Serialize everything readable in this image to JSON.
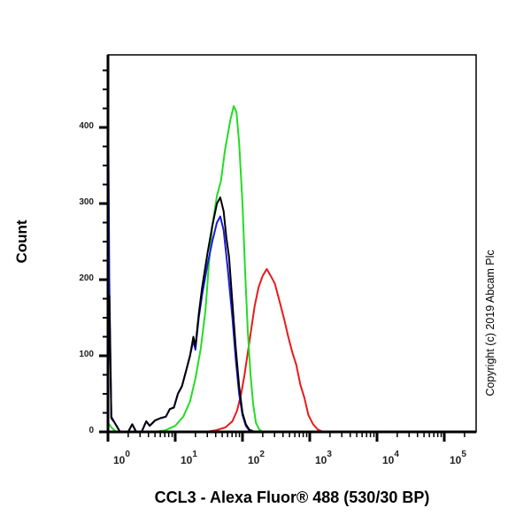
{
  "chart_data": {
    "type": "line",
    "title": "",
    "xlabel": "CCL3 - Alexa Fluor® 488 (530/30 BP)",
    "ylabel": "Count",
    "xscale": "log",
    "xlim_log10": [
      0,
      5.4
    ],
    "ylim": [
      0,
      500
    ],
    "yticks": [
      0,
      100,
      200,
      300,
      400
    ],
    "ytick_labels": [
      "0",
      "100",
      "200",
      "300",
      "400"
    ],
    "xticks_log10": [
      0,
      1,
      2,
      3,
      4,
      5
    ],
    "xtick_labels": [
      {
        "base": "10",
        "exp": "0"
      },
      {
        "base": "10",
        "exp": "1"
      },
      {
        "base": "10",
        "exp": "2"
      },
      {
        "base": "10",
        "exp": "3"
      },
      {
        "base": "10",
        "exp": "4"
      },
      {
        "base": "10",
        "exp": "5"
      }
    ],
    "grid": false,
    "legend": null,
    "annotation": "Copyright (c) 2019 Abcam Plc",
    "series": [
      {
        "name": "Red",
        "color": "#e8191a",
        "points_log10x_count": [
          [
            1.45,
            0
          ],
          [
            1.6,
            2
          ],
          [
            1.75,
            6
          ],
          [
            1.85,
            14
          ],
          [
            1.92,
            28
          ],
          [
            1.98,
            50
          ],
          [
            2.03,
            75
          ],
          [
            2.08,
            105
          ],
          [
            2.13,
            135
          ],
          [
            2.18,
            165
          ],
          [
            2.24,
            190
          ],
          [
            2.3,
            205
          ],
          [
            2.36,
            214
          ],
          [
            2.42,
            205
          ],
          [
            2.48,
            195
          ],
          [
            2.55,
            172
          ],
          [
            2.62,
            148
          ],
          [
            2.68,
            125
          ],
          [
            2.74,
            105
          ],
          [
            2.8,
            88
          ],
          [
            2.86,
            62
          ],
          [
            2.92,
            45
          ],
          [
            2.98,
            22
          ],
          [
            3.05,
            10
          ],
          [
            3.12,
            3
          ],
          [
            3.2,
            0
          ]
        ]
      },
      {
        "name": "Green",
        "color": "#22dd22",
        "points_log10x_count": [
          [
            0.0,
            12
          ],
          [
            0.05,
            6
          ],
          [
            0.12,
            0
          ],
          [
            0.7,
            0
          ],
          [
            0.85,
            2
          ],
          [
            1.0,
            8
          ],
          [
            1.12,
            20
          ],
          [
            1.22,
            40
          ],
          [
            1.3,
            70
          ],
          [
            1.38,
            110
          ],
          [
            1.45,
            160
          ],
          [
            1.5,
            220
          ],
          [
            1.55,
            270
          ],
          [
            1.62,
            310
          ],
          [
            1.68,
            330
          ],
          [
            1.74,
            370
          ],
          [
            1.82,
            410
          ],
          [
            1.87,
            428
          ],
          [
            1.91,
            420
          ],
          [
            1.95,
            380
          ],
          [
            2.0,
            300
          ],
          [
            2.04,
            210
          ],
          [
            2.08,
            130
          ],
          [
            2.12,
            75
          ],
          [
            2.16,
            35
          ],
          [
            2.2,
            12
          ],
          [
            2.25,
            3
          ],
          [
            2.3,
            0
          ]
        ]
      },
      {
        "name": "Blue",
        "color": "#1a1adf",
        "points_log10x_count": [
          [
            0.0,
            460
          ],
          [
            0.02,
            200
          ],
          [
            0.05,
            20
          ],
          [
            0.1,
            12
          ],
          [
            0.18,
            0
          ],
          [
            0.3,
            0
          ],
          [
            0.36,
            10
          ],
          [
            0.42,
            0
          ],
          [
            0.5,
            0
          ],
          [
            0.57,
            14
          ],
          [
            0.62,
            8
          ],
          [
            0.7,
            15
          ],
          [
            0.78,
            18
          ],
          [
            0.86,
            20
          ],
          [
            0.92,
            30
          ],
          [
            0.98,
            32
          ],
          [
            1.04,
            50
          ],
          [
            1.1,
            60
          ],
          [
            1.16,
            80
          ],
          [
            1.22,
            100
          ],
          [
            1.27,
            120
          ],
          [
            1.3,
            108
          ],
          [
            1.35,
            150
          ],
          [
            1.4,
            180
          ],
          [
            1.48,
            220
          ],
          [
            1.55,
            250
          ],
          [
            1.62,
            275
          ],
          [
            1.67,
            283
          ],
          [
            1.72,
            265
          ],
          [
            1.78,
            215
          ],
          [
            1.85,
            150
          ],
          [
            1.9,
            95
          ],
          [
            1.95,
            50
          ],
          [
            2.0,
            22
          ],
          [
            2.05,
            8
          ],
          [
            2.1,
            2
          ],
          [
            2.15,
            0
          ]
        ]
      },
      {
        "name": "Black",
        "color": "#000000",
        "points_log10x_count": [
          [
            0.02,
            180
          ],
          [
            0.05,
            18
          ],
          [
            0.1,
            12
          ],
          [
            0.18,
            0
          ],
          [
            0.3,
            0
          ],
          [
            0.36,
            10
          ],
          [
            0.42,
            0
          ],
          [
            0.5,
            0
          ],
          [
            0.57,
            14
          ],
          [
            0.62,
            8
          ],
          [
            0.7,
            15
          ],
          [
            0.78,
            18
          ],
          [
            0.86,
            20
          ],
          [
            0.92,
            30
          ],
          [
            0.98,
            32
          ],
          [
            1.04,
            50
          ],
          [
            1.1,
            60
          ],
          [
            1.16,
            80
          ],
          [
            1.22,
            100
          ],
          [
            1.27,
            125
          ],
          [
            1.3,
            112
          ],
          [
            1.35,
            155
          ],
          [
            1.4,
            190
          ],
          [
            1.48,
            235
          ],
          [
            1.55,
            270
          ],
          [
            1.62,
            300
          ],
          [
            1.67,
            308
          ],
          [
            1.72,
            290
          ],
          [
            1.76,
            255
          ],
          [
            1.8,
            230
          ],
          [
            1.85,
            170
          ],
          [
            1.9,
            110
          ],
          [
            1.95,
            60
          ],
          [
            2.0,
            25
          ],
          [
            2.05,
            10
          ],
          [
            2.1,
            3
          ],
          [
            2.18,
            0
          ]
        ]
      }
    ]
  },
  "ylabel": "Count",
  "xlabel": "CCL3 - Alexa Fluor® 488 (530/30 BP)",
  "copyright": "Copyright (c) 2019 Abcam Plc"
}
